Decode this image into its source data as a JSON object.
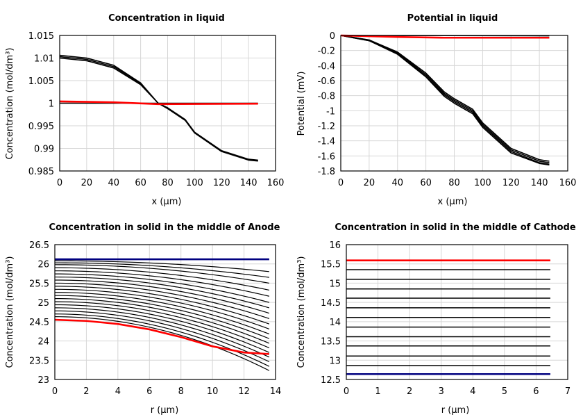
{
  "chart_data": [
    {
      "type": "line",
      "title": "Concentration in liquid",
      "xlabel": "x (µm)",
      "ylabel": "Concentration (mol/dm³)",
      "xlim": [
        0,
        160
      ],
      "ylim": [
        0.985,
        1.015
      ],
      "xticks": [
        "0",
        "20",
        "40",
        "60",
        "80",
        "100",
        "120",
        "140",
        "160"
      ],
      "yticks": [
        "0.985",
        "0.99",
        "0.995",
        "1",
        "1.005",
        "1.01",
        "1.015"
      ],
      "grid": true,
      "series": [
        {
          "color": "#000000",
          "x": [
            0,
            20,
            40,
            60,
            73,
            80,
            93,
            100,
            120,
            140,
            147
          ],
          "y": [
            1.0103,
            1.0097,
            1.0081,
            1.0043,
            1.0,
            0.9989,
            0.9963,
            0.9935,
            0.9894,
            0.9875,
            0.9873
          ]
        },
        {
          "color": "#000000",
          "x": [
            0,
            20,
            40,
            60,
            73,
            80,
            93,
            100,
            120,
            140,
            147
          ],
          "y": [
            1.0106,
            1.01,
            1.0084,
            1.0045,
            1.0,
            0.9988,
            0.9962,
            0.9934,
            0.9893,
            0.9874,
            0.9872
          ]
        },
        {
          "color": "#000000",
          "x": [
            0,
            20,
            40,
            60,
            73,
            80,
            93,
            100,
            120,
            140,
            147
          ],
          "y": [
            1.01,
            1.0094,
            1.0078,
            1.0041,
            1.0,
            0.999,
            0.9964,
            0.9936,
            0.9895,
            0.9876,
            0.9874
          ]
        },
        {
          "color": "#000000",
          "x": [
            0,
            147
          ],
          "y": [
            1.0,
            1.0
          ]
        },
        {
          "color": "#ff0000",
          "x": [
            0,
            40,
            73,
            147
          ],
          "y": [
            1.0004,
            1.0002,
            0.9998,
            0.9999
          ]
        }
      ]
    },
    {
      "type": "line",
      "title": "Potential in liquid",
      "xlabel": "x (µm)",
      "ylabel": "Potential (mV)",
      "xlim": [
        0,
        160
      ],
      "ylim": [
        -1.8,
        0
      ],
      "xticks": [
        "0",
        "20",
        "40",
        "60",
        "80",
        "100",
        "120",
        "140",
        "160"
      ],
      "yticks": [
        "-1.8",
        "-1.6",
        "-1.4",
        "-1.2",
        "-1",
        "-0.8",
        "-0.6",
        "-0.4",
        "-0.2",
        "0"
      ],
      "grid": true,
      "series": [
        {
          "color": "#000000",
          "x": [
            0,
            20,
            40,
            60,
            73,
            80,
            93,
            100,
            120,
            140,
            147
          ],
          "y": [
            0,
            -0.06,
            -0.22,
            -0.5,
            -0.75,
            -0.84,
            -0.98,
            -1.16,
            -1.5,
            -1.65,
            -1.67
          ]
        },
        {
          "color": "#000000",
          "x": [
            0,
            20,
            40,
            60,
            73,
            80,
            93,
            100,
            120,
            140,
            147
          ],
          "y": [
            0,
            -0.06,
            -0.23,
            -0.52,
            -0.77,
            -0.86,
            -1.0,
            -1.18,
            -1.52,
            -1.67,
            -1.69
          ]
        },
        {
          "color": "#000000",
          "x": [
            0,
            20,
            40,
            60,
            73,
            80,
            93,
            100,
            120,
            140,
            147
          ],
          "y": [
            0,
            -0.07,
            -0.24,
            -0.54,
            -0.79,
            -0.88,
            -1.02,
            -1.2,
            -1.54,
            -1.69,
            -1.71
          ]
        },
        {
          "color": "#000000",
          "x": [
            0,
            20,
            40,
            60,
            73,
            80,
            93,
            100,
            120,
            140,
            147
          ],
          "y": [
            0,
            -0.07,
            -0.25,
            -0.55,
            -0.81,
            -0.9,
            -1.04,
            -1.22,
            -1.56,
            -1.7,
            -1.72
          ]
        },
        {
          "color": "#000000",
          "x": [
            0,
            147
          ],
          "y": [
            0,
            -0.005
          ]
        },
        {
          "color": "#ff0000",
          "x": [
            0,
            40,
            73,
            147
          ],
          "y": [
            0,
            -0.02,
            -0.03,
            -0.03
          ]
        }
      ]
    },
    {
      "type": "line",
      "title": "Concentration in solid in the middle of Anode",
      "xlabel": "r (µm)",
      "ylabel": "Concentration (mol/dm³)",
      "xlim": [
        0,
        14
      ],
      "ylim": [
        23,
        26.5
      ],
      "xticks": [
        "0",
        "2",
        "4",
        "6",
        "8",
        "10",
        "12",
        "14"
      ],
      "yticks": [
        "23",
        "23.5",
        "24",
        "24.5",
        "25",
        "25.5",
        "26",
        "26.5"
      ],
      "grid": true,
      "family": {
        "color": "#000000",
        "r_end": 13.6,
        "start": [
          26.08,
          26.03,
          25.98,
          25.9,
          25.82,
          25.74,
          25.66,
          25.58,
          25.5,
          25.42,
          25.34,
          25.26,
          25.18,
          25.1,
          25.02,
          24.94,
          24.86,
          24.78,
          24.7,
          24.63
        ],
        "drop": [
          0.28,
          0.38,
          0.48,
          0.58,
          0.66,
          0.74,
          0.8,
          0.86,
          0.92,
          0.98,
          1.03,
          1.08,
          1.12,
          1.16,
          1.2,
          1.24,
          1.28,
          1.32,
          1.36,
          1.4
        ]
      },
      "series": [
        {
          "color": "#000080",
          "x": [
            0,
            13.6
          ],
          "y": [
            26.12,
            26.12
          ]
        },
        {
          "color": "#ff0000",
          "x": [
            0,
            2,
            4,
            6,
            8,
            10,
            12,
            13.6
          ],
          "y": [
            24.55,
            24.52,
            24.44,
            24.3,
            24.1,
            23.86,
            23.7,
            23.66
          ]
        }
      ]
    },
    {
      "type": "line",
      "title": "Concentration in solid in the middle of Cathode",
      "xlabel": "r (µm)",
      "ylabel": "Concentration (mol/dm³)",
      "xlim": [
        0,
        7
      ],
      "ylim": [
        12.5,
        16
      ],
      "xticks": [
        "0",
        "1",
        "2",
        "3",
        "4",
        "5",
        "6",
        "7"
      ],
      "yticks": [
        "12.5",
        "13",
        "13.5",
        "14",
        "14.5",
        "15",
        "15.5",
        "16"
      ],
      "grid": true,
      "family": {
        "color": "#000000",
        "r_end": 6.45,
        "levels": [
          12.86,
          13.11,
          13.37,
          13.61,
          13.86,
          14.11,
          14.36,
          14.61,
          14.85,
          15.1,
          15.35
        ]
      },
      "series": [
        {
          "color": "#000080",
          "x": [
            0,
            6.45
          ],
          "y": [
            12.64,
            12.64
          ]
        },
        {
          "color": "#ff0000",
          "x": [
            0,
            6.45
          ],
          "y": [
            15.59,
            15.59
          ]
        }
      ]
    }
  ]
}
